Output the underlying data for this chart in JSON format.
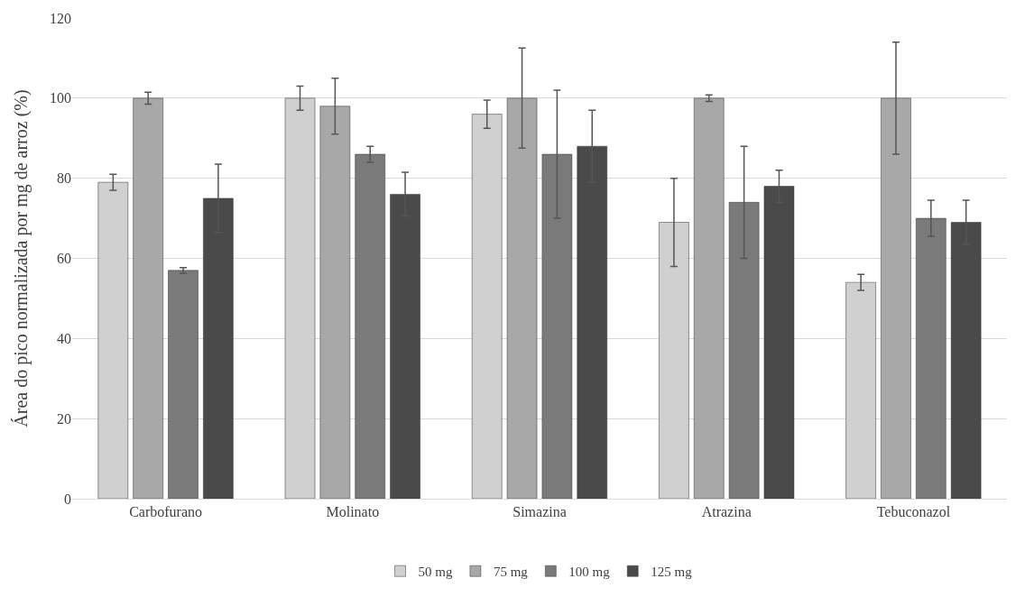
{
  "chart_data": {
    "type": "bar",
    "ylabel": "Área do pico normalizada por mg de arroz (%)",
    "categories": [
      "Carbofurano",
      "Molinato",
      "Simazina",
      "Atrazina",
      "Tebuconazol"
    ],
    "series": [
      {
        "name": "50 mg",
        "color": "#d0d0d0",
        "values": [
          79,
          100,
          96,
          69,
          54
        ],
        "errors": [
          2,
          3,
          3.5,
          11,
          2
        ]
      },
      {
        "name": "75 mg",
        "color": "#a8a8a8",
        "values": [
          100,
          98,
          100,
          100,
          100
        ],
        "errors": [
          1.5,
          7,
          12.5,
          0.8,
          14
        ]
      },
      {
        "name": "100 mg",
        "color": "#7a7a7a",
        "values": [
          57,
          86,
          86,
          74,
          70
        ],
        "errors": [
          0.7,
          2,
          16,
          14,
          4.5
        ]
      },
      {
        "name": "125 mg",
        "color": "#4a4a4a",
        "values": [
          75,
          76,
          88,
          78,
          69
        ],
        "errors": [
          8.5,
          5.5,
          9,
          4,
          5.5
        ]
      }
    ],
    "ylim": [
      0,
      120
    ],
    "yticks": [
      0,
      20,
      40,
      60,
      80,
      100,
      120
    ],
    "grid": "y",
    "legend": "bottom"
  }
}
